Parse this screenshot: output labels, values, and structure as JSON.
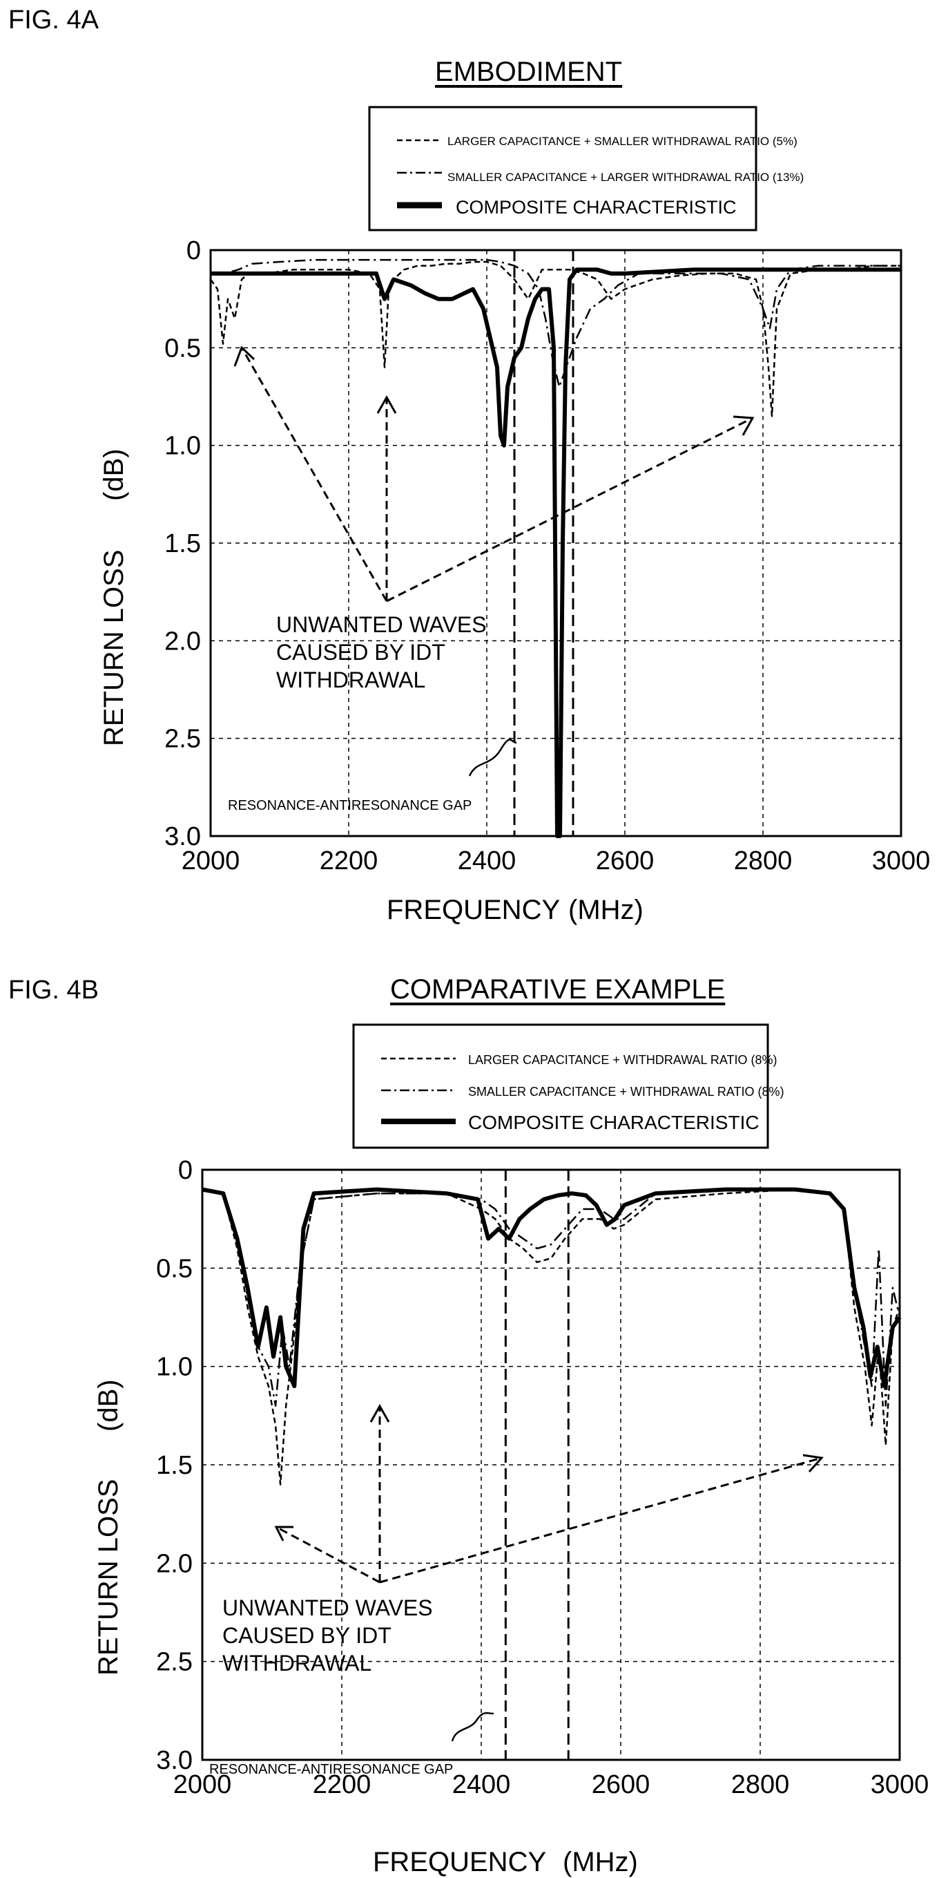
{
  "figures": [
    {
      "fig_label": "FIG. 4A",
      "title": "EMBODIMENT",
      "annotation": [
        "UNWANTED WAVES",
        "CAUSED BY IDT",
        "WITHDRAWAL"
      ],
      "gap_label": "RESONANCE-ANTIRESONANCE GAP"
    },
    {
      "fig_label": "FIG. 4B",
      "title": "COMPARATIVE EXAMPLE",
      "annotation": [
        "UNWANTED WAVES",
        "CAUSED BY IDT",
        "WITHDRAWAL"
      ],
      "gap_label": "RESONANCE-ANTIRESONANCE GAP"
    }
  ],
  "chart_data": [
    {
      "type": "line",
      "title": "EMBODIMENT",
      "xlabel": "FREQUENCY",
      "xunit": "(MHz)",
      "ylabel": "RETURN LOSS",
      "yunit": "(dB)",
      "xlim": [
        2000,
        3000
      ],
      "ylim": [
        0,
        3.0
      ],
      "y_inverted": true,
      "x_ticks": [
        "2000",
        "2200",
        "2400",
        "2600",
        "2800",
        "3000"
      ],
      "y_ticks": [
        "0",
        "0.5",
        "1.0",
        "1.5",
        "2.0",
        "2.5",
        "3.0"
      ],
      "grid": true,
      "legend_position": "top-right",
      "gap_lines_mhz": [
        2440,
        2525
      ],
      "series": [
        {
          "name": "LARGER CAPACITANCE + SMALLER WITHDRAWAL RATIO (5%)",
          "style": "dashed",
          "x": [
            2000,
            2010,
            2018,
            2025,
            2035,
            2045,
            2055,
            2080,
            2120,
            2160,
            2200,
            2230,
            2245,
            2252,
            2258,
            2265,
            2280,
            2300,
            2320,
            2340,
            2360,
            2380,
            2400,
            2420,
            2440,
            2460,
            2480,
            2500,
            2520,
            2540,
            2560,
            2580,
            2600,
            2640,
            2680,
            2720,
            2760,
            2790,
            2800,
            2808,
            2813,
            2820,
            2840,
            2880,
            2920,
            2960,
            3000
          ],
          "y": [
            0.15,
            0.2,
            0.48,
            0.25,
            0.35,
            0.15,
            0.12,
            0.12,
            0.1,
            0.1,
            0.1,
            0.12,
            0.2,
            0.6,
            0.2,
            0.15,
            0.1,
            0.08,
            0.08,
            0.07,
            0.07,
            0.06,
            0.06,
            0.08,
            0.15,
            0.25,
            0.1,
            0.1,
            0.1,
            0.12,
            0.15,
            0.25,
            0.2,
            0.15,
            0.13,
            0.12,
            0.12,
            0.15,
            0.3,
            0.6,
            0.85,
            0.3,
            0.12,
            0.1,
            0.1,
            0.08,
            0.08
          ]
        },
        {
          "name": "SMALLER CAPACITANCE + LARGER WITHDRAWAL RATIO (13%)",
          "style": "dashdot",
          "x": [
            2000,
            2020,
            2040,
            2060,
            2100,
            2150,
            2200,
            2250,
            2300,
            2350,
            2400,
            2420,
            2440,
            2460,
            2475,
            2485,
            2495,
            2505,
            2515,
            2530,
            2550,
            2570,
            2590,
            2620,
            2660,
            2700,
            2740,
            2780,
            2800,
            2810,
            2820,
            2840,
            2880,
            2920,
            2960,
            3000
          ],
          "y": [
            0.12,
            0.12,
            0.1,
            0.07,
            0.06,
            0.05,
            0.05,
            0.05,
            0.05,
            0.05,
            0.05,
            0.06,
            0.08,
            0.12,
            0.2,
            0.35,
            0.55,
            0.7,
            0.6,
            0.45,
            0.3,
            0.25,
            0.18,
            0.12,
            0.12,
            0.12,
            0.12,
            0.15,
            0.3,
            0.4,
            0.2,
            0.1,
            0.08,
            0.08,
            0.08,
            0.08
          ]
        },
        {
          "name": "COMPOSITE CHARACTERISTIC",
          "style": "solid",
          "x": [
            2000,
            2030,
            2060,
            2100,
            2150,
            2200,
            2240,
            2252,
            2265,
            2290,
            2310,
            2330,
            2350,
            2380,
            2395,
            2405,
            2415,
            2420,
            2425,
            2430,
            2440,
            2450,
            2460,
            2470,
            2480,
            2490,
            2497,
            2502,
            2506,
            2510,
            2514,
            2520,
            2530,
            2545,
            2560,
            2580,
            2600,
            2700,
            2800,
            2900,
            3000
          ],
          "y": [
            0.12,
            0.12,
            0.12,
            0.12,
            0.12,
            0.12,
            0.12,
            0.25,
            0.15,
            0.18,
            0.22,
            0.25,
            0.25,
            0.2,
            0.3,
            0.45,
            0.6,
            0.95,
            1.0,
            0.7,
            0.55,
            0.5,
            0.35,
            0.25,
            0.2,
            0.2,
            0.5,
            3.0,
            3.0,
            1.5,
            0.6,
            0.15,
            0.1,
            0.1,
            0.1,
            0.12,
            0.12,
            0.1,
            0.1,
            0.1,
            0.1
          ]
        }
      ]
    },
    {
      "type": "line",
      "title": "COMPARATIVE EXAMPLE",
      "xlabel": "FREQUENCY",
      "xunit": "(MHz)",
      "ylabel": "RETURN LOSS",
      "yunit": "(dB)",
      "xlim": [
        2000,
        3000
      ],
      "ylim": [
        0,
        3.0
      ],
      "y_inverted": true,
      "x_ticks": [
        "2000",
        "2200",
        "2400",
        "2600",
        "2800",
        "3000"
      ],
      "y_ticks": [
        "0",
        "0.5",
        "1.0",
        "1.5",
        "2.0",
        "2.5",
        "3.0"
      ],
      "grid": true,
      "legend_position": "top-right",
      "gap_lines_mhz": [
        2435,
        2525
      ],
      "series": [
        {
          "name": "LARGER CAPACITANCE + WITHDRAWAL RATIO (8%)",
          "style": "dashed",
          "x": [
            2000,
            2030,
            2050,
            2065,
            2080,
            2095,
            2105,
            2112,
            2120,
            2130,
            2140,
            2160,
            2250,
            2350,
            2400,
            2420,
            2440,
            2460,
            2480,
            2500,
            2520,
            2545,
            2570,
            2590,
            2605,
            2650,
            2750,
            2850,
            2900,
            2920,
            2935,
            2950,
            2960,
            2970,
            2980,
            2990,
            3000
          ],
          "y": [
            0.1,
            0.12,
            0.4,
            0.7,
            0.95,
            1.1,
            1.3,
            1.6,
            1.2,
            0.9,
            0.5,
            0.15,
            0.12,
            0.12,
            0.2,
            0.25,
            0.35,
            0.4,
            0.47,
            0.45,
            0.35,
            0.25,
            0.25,
            0.3,
            0.28,
            0.15,
            0.12,
            0.1,
            0.12,
            0.2,
            0.7,
            1.0,
            1.3,
            0.9,
            1.4,
            0.8,
            0.7
          ]
        },
        {
          "name": "SMALLER CAPACITANCE + WITHDRAWAL RATIO (8%)",
          "style": "dashdot",
          "x": [
            2000,
            2030,
            2050,
            2065,
            2080,
            2095,
            2105,
            2115,
            2125,
            2140,
            2160,
            2250,
            2350,
            2400,
            2420,
            2440,
            2460,
            2480,
            2500,
            2520,
            2545,
            2570,
            2590,
            2605,
            2650,
            2750,
            2850,
            2900,
            2920,
            2935,
            2950,
            2960,
            2970,
            2980,
            2990,
            3000
          ],
          "y": [
            0.1,
            0.12,
            0.35,
            0.65,
            0.9,
            1.0,
            1.2,
            0.8,
            1.0,
            0.5,
            0.15,
            0.12,
            0.12,
            0.15,
            0.2,
            0.3,
            0.35,
            0.4,
            0.38,
            0.3,
            0.2,
            0.2,
            0.25,
            0.25,
            0.12,
            0.1,
            0.1,
            0.12,
            0.2,
            0.6,
            0.9,
            1.1,
            0.4,
            1.2,
            0.6,
            0.75
          ]
        },
        {
          "name": "COMPOSITE CHARACTERISTIC",
          "style": "solid",
          "x": [
            2000,
            2030,
            2050,
            2065,
            2080,
            2092,
            2102,
            2112,
            2120,
            2132,
            2145,
            2160,
            2250,
            2350,
            2395,
            2410,
            2425,
            2440,
            2455,
            2470,
            2490,
            2510,
            2530,
            2550,
            2565,
            2580,
            2592,
            2605,
            2650,
            2750,
            2850,
            2900,
            2920,
            2935,
            2948,
            2958,
            2968,
            2978,
            2990,
            3000
          ],
          "y": [
            0.1,
            0.12,
            0.35,
            0.6,
            0.9,
            0.7,
            0.95,
            0.75,
            1.0,
            1.1,
            0.3,
            0.12,
            0.1,
            0.12,
            0.15,
            0.35,
            0.3,
            0.35,
            0.25,
            0.2,
            0.15,
            0.13,
            0.12,
            0.13,
            0.18,
            0.28,
            0.25,
            0.18,
            0.12,
            0.1,
            0.1,
            0.12,
            0.2,
            0.6,
            0.8,
            1.05,
            0.9,
            1.1,
            0.8,
            0.75
          ]
        }
      ]
    }
  ]
}
